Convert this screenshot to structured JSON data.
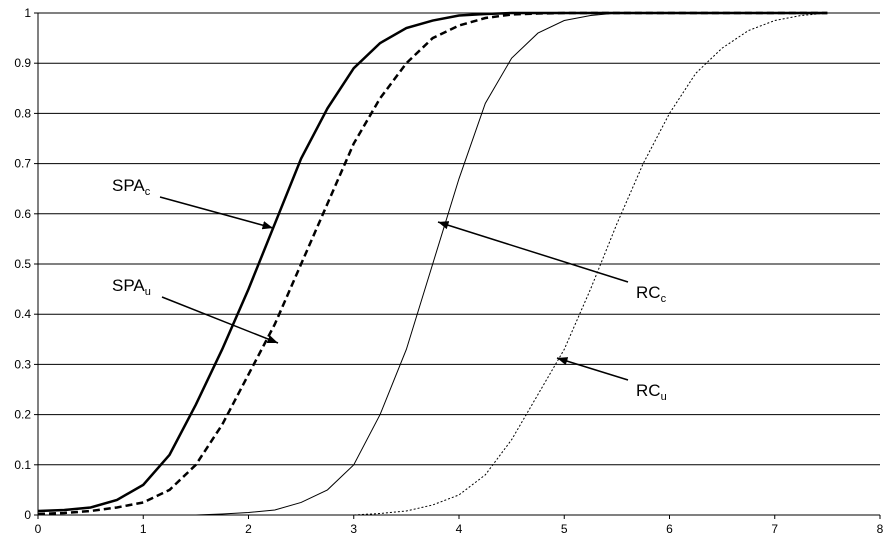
{
  "chart_data": {
    "type": "line",
    "x": [
      0,
      0.25,
      0.5,
      0.75,
      1,
      1.25,
      1.5,
      1.75,
      2,
      2.25,
      2.5,
      2.75,
      3,
      3.25,
      3.5,
      3.75,
      4,
      4.25,
      4.5,
      4.75,
      5,
      5.25,
      5.5,
      5.75,
      6,
      6.25,
      6.5,
      6.75,
      7,
      7.25,
      7.5
    ],
    "series": [
      {
        "label": "SPA",
        "label_sub": "c",
        "color": "#000000",
        "width": 2.5,
        "dash": "solid",
        "values": [
          0.008,
          0.01,
          0.015,
          0.03,
          0.06,
          0.12,
          0.22,
          0.33,
          0.45,
          0.58,
          0.71,
          0.81,
          0.89,
          0.94,
          0.97,
          0.985,
          0.995,
          0.998,
          1,
          1,
          1,
          1,
          1,
          1,
          1,
          1,
          1,
          1,
          1,
          1,
          1
        ]
      },
      {
        "label": "SPA",
        "label_sub": "u",
        "color": "#000000",
        "width": 2.5,
        "dash": "dashed",
        "values": [
          0.002,
          0.004,
          0.008,
          0.015,
          0.025,
          0.05,
          0.1,
          0.18,
          0.28,
          0.38,
          0.5,
          0.62,
          0.74,
          0.83,
          0.9,
          0.95,
          0.975,
          0.99,
          0.997,
          0.999,
          1,
          1,
          1,
          1,
          1,
          1,
          1,
          1,
          1,
          1,
          1
        ]
      },
      {
        "label": "RC",
        "label_sub": "c",
        "color": "#000000",
        "width": 1,
        "dash": "solid",
        "values": [
          0,
          0,
          0,
          0,
          0,
          0,
          0,
          0.002,
          0.005,
          0.01,
          0.025,
          0.05,
          0.1,
          0.2,
          0.33,
          0.5,
          0.67,
          0.82,
          0.91,
          0.96,
          0.985,
          0.995,
          1,
          1,
          1,
          1,
          1,
          1,
          1,
          1,
          1
        ]
      },
      {
        "label": "RC",
        "label_sub": "u",
        "color": "#000000",
        "width": 1,
        "dash": "dotted",
        "values": [
          0,
          0,
          0,
          0,
          0,
          0,
          0,
          0,
          0,
          0,
          0,
          0,
          0,
          0.003,
          0.008,
          0.02,
          0.04,
          0.08,
          0.15,
          0.24,
          0.33,
          0.45,
          0.58,
          0.7,
          0.8,
          0.88,
          0.93,
          0.965,
          0.985,
          0.995,
          1
        ]
      }
    ],
    "xlim": [
      0,
      8
    ],
    "xticks": [
      0,
      1,
      2,
      3,
      4,
      5,
      6,
      7,
      8
    ],
    "ylim": [
      0,
      1
    ],
    "yticks": [
      0,
      0.1,
      0.2,
      0.3,
      0.4,
      0.5,
      0.6,
      0.7,
      0.8,
      0.9,
      1
    ],
    "grid": true
  }
}
